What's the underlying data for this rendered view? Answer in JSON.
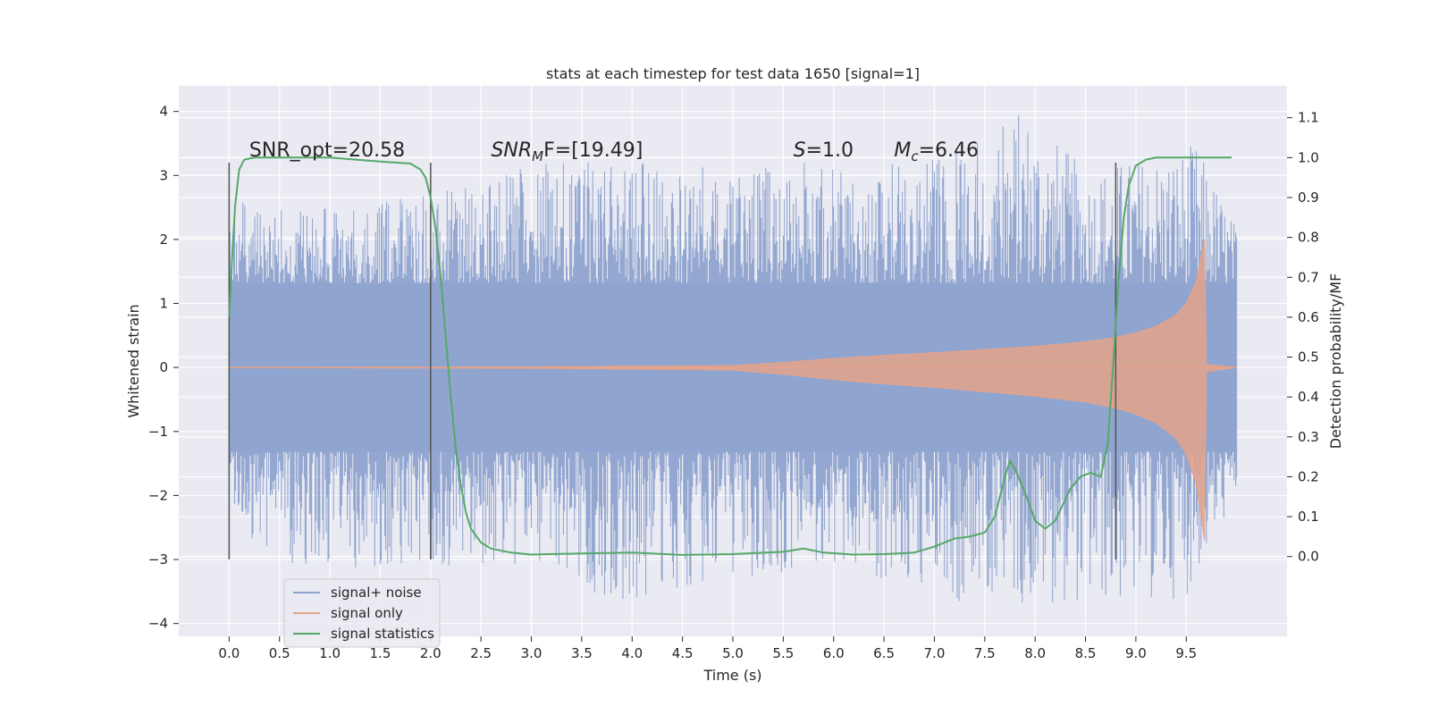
{
  "chart_data": {
    "type": "line",
    "title": "stats at each timestep for test data 1650 [signal=1]",
    "xlabel": "Time (s)",
    "ylabel": "Whitened strain",
    "ylabel_right": "Detection probability/MF",
    "xlim": [
      -0.5,
      10.5
    ],
    "ylim": [
      -4.2,
      4.4
    ],
    "ylim_right": [
      -0.2,
      1.18
    ],
    "x_ticks": [
      0.0,
      0.5,
      1.0,
      1.5,
      2.0,
      2.5,
      3.0,
      3.5,
      4.0,
      4.5,
      5.0,
      5.5,
      6.0,
      6.5,
      7.0,
      7.5,
      8.0,
      8.5,
      9.0,
      9.5
    ],
    "x_tick_labels": [
      "0.0",
      "0.5",
      "1.0",
      "1.5",
      "2.0",
      "2.5",
      "3.0",
      "3.5",
      "4.0",
      "4.5",
      "5.0",
      "5.5",
      "6.0",
      "6.5",
      "7.0",
      "7.5",
      "8.0",
      "8.5",
      "9.0",
      "9.5"
    ],
    "y_ticks": [
      -4,
      -3,
      -2,
      -1,
      0,
      1,
      2,
      3,
      4
    ],
    "y_tick_labels": [
      "−4",
      "−3",
      "−2",
      "−1",
      "0",
      "1",
      "2",
      "3",
      "4"
    ],
    "y_right_ticks": [
      0.0,
      0.1,
      0.2,
      0.3,
      0.4,
      0.5,
      0.6,
      0.7,
      0.8,
      0.9,
      1.0,
      1.1
    ],
    "y_right_tick_labels": [
      "0.0",
      "0.1",
      "0.2",
      "0.3",
      "0.4",
      "0.5",
      "0.6",
      "0.7",
      "0.8",
      "0.9",
      "1.0",
      "1.1"
    ],
    "grid": true,
    "legend": {
      "placement": "lower-left",
      "entries": [
        {
          "name": "signal+ noise",
          "color": "#8ea3cf"
        },
        {
          "name": "signal only",
          "color": "#e4a38b"
        },
        {
          "name": "signal statistics",
          "color": "#55a868"
        }
      ]
    },
    "annotations": [
      {
        "x": 0.2,
        "y": 3.2,
        "text": "SNR_opt=20.58"
      },
      {
        "x": 2.6,
        "y": 3.2,
        "base": "SNR",
        "sub": "M",
        "rest": "F=[19.49]"
      },
      {
        "x": 5.6,
        "y": 3.2,
        "base": "S",
        "rest": "=1.0"
      },
      {
        "x": 6.6,
        "y": 3.2,
        "base": "M",
        "sub": "c",
        "rest": "=6.46"
      }
    ],
    "vertical_lines": [
      {
        "x": 0.0,
        "y_range": [
          -3.0,
          3.2
        ]
      },
      {
        "x": 2.0,
        "y_range": [
          -3.0,
          3.2
        ]
      },
      {
        "x": 8.8,
        "y_range": [
          -3.0,
          3.2
        ]
      }
    ],
    "series": [
      {
        "name": "signal+ noise",
        "color": "#8ea3cf",
        "x_range": [
          0.0,
          10.0
        ],
        "envelope_upper": [
          [
            0.0,
            2.6
          ],
          [
            1.0,
            2.5
          ],
          [
            2.0,
            2.7
          ],
          [
            3.0,
            3.2
          ],
          [
            4.0,
            3.2
          ],
          [
            5.0,
            3.2
          ],
          [
            6.0,
            3.2
          ],
          [
            7.0,
            3.3
          ],
          [
            7.9,
            4.1
          ],
          [
            8.5,
            3.1
          ],
          [
            9.0,
            3.3
          ],
          [
            9.6,
            3.5
          ],
          [
            10.0,
            2.2
          ]
        ],
        "envelope_lower": [
          [
            0.0,
            -2.3
          ],
          [
            0.5,
            -3.3
          ],
          [
            1.0,
            -3.2
          ],
          [
            2.0,
            -3.1
          ],
          [
            3.0,
            -3.1
          ],
          [
            3.9,
            -3.7
          ],
          [
            5.0,
            -3.3
          ],
          [
            6.0,
            -3.1
          ],
          [
            7.3,
            -3.7
          ],
          [
            9.0,
            -3.7
          ],
          [
            9.5,
            -3.6
          ],
          [
            10.0,
            -2.0
          ]
        ]
      },
      {
        "name": "signal only",
        "color": "#e4a38b",
        "x": [
          0.0,
          3.0,
          5.0,
          5.5,
          6.0,
          6.5,
          7.0,
          7.5,
          8.0,
          8.5,
          8.8,
          9.0,
          9.2,
          9.4,
          9.5,
          9.6,
          9.65,
          9.68,
          9.7,
          10.0
        ],
        "amplitude": [
          0.0,
          0.01,
          0.03,
          0.08,
          0.14,
          0.19,
          0.23,
          0.28,
          0.33,
          0.4,
          0.47,
          0.54,
          0.64,
          0.82,
          1.0,
          1.35,
          1.75,
          2.0,
          0.05,
          0.0
        ]
      },
      {
        "name": "signal statistics",
        "color": "#55a868",
        "axis": "right",
        "x": [
          0.0,
          0.03,
          0.06,
          0.1,
          0.15,
          0.25,
          0.5,
          1.0,
          1.5,
          1.8,
          1.9,
          1.95,
          2.0,
          2.05,
          2.1,
          2.15,
          2.2,
          2.25,
          2.3,
          2.35,
          2.4,
          2.5,
          2.6,
          2.8,
          3.0,
          3.5,
          4.0,
          4.5,
          5.0,
          5.5,
          5.7,
          5.9,
          6.2,
          6.5,
          6.8,
          7.0,
          7.2,
          7.35,
          7.5,
          7.6,
          7.7,
          7.75,
          7.8,
          7.9,
          8.0,
          8.1,
          8.2,
          8.35,
          8.45,
          8.55,
          8.65,
          8.72,
          8.78,
          8.83,
          8.88,
          8.93,
          9.0,
          9.1,
          9.2,
          9.5,
          9.95
        ],
        "y": [
          0.6,
          0.75,
          0.88,
          0.97,
          0.995,
          1.0,
          1.0,
          1.0,
          0.99,
          0.985,
          0.97,
          0.95,
          0.9,
          0.82,
          0.7,
          0.55,
          0.4,
          0.27,
          0.18,
          0.11,
          0.07,
          0.035,
          0.02,
          0.01,
          0.005,
          0.008,
          0.01,
          0.004,
          0.006,
          0.012,
          0.02,
          0.01,
          0.005,
          0.006,
          0.01,
          0.025,
          0.045,
          0.05,
          0.06,
          0.1,
          0.2,
          0.24,
          0.22,
          0.16,
          0.09,
          0.07,
          0.09,
          0.17,
          0.2,
          0.21,
          0.2,
          0.28,
          0.5,
          0.7,
          0.85,
          0.93,
          0.98,
          0.995,
          1.0,
          1.0,
          1.0
        ]
      }
    ]
  }
}
